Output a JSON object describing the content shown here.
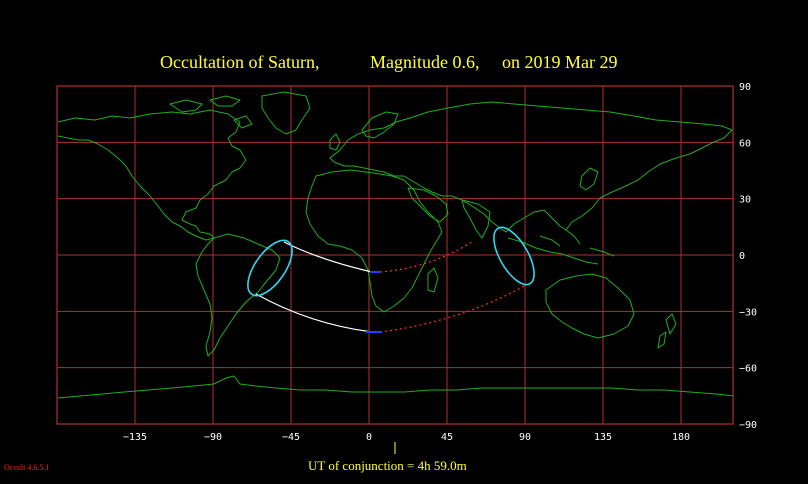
{
  "title": {
    "object": "Occultation of Saturn,",
    "magnitude": "Magnitude 0.6,",
    "date": "on 2019 Mar 29"
  },
  "axes": {
    "longitude_ticks": [
      "−135",
      "−90",
      "−45",
      "0",
      "45",
      "90",
      "135",
      "180"
    ],
    "latitude_ticks": [
      "90",
      "60",
      "30",
      "0",
      "−30",
      "−60",
      "−90"
    ]
  },
  "conjunction_label": "UT of conjunction = 4h 59.0m",
  "version_label": "Occult 4.6.5.1",
  "colors": {
    "background": "#000000",
    "grid": "#b03030",
    "coastline": "#1fae1f",
    "title": "#ffff33",
    "limit_line": "#ffffff",
    "limit_dotted": "#ff3030",
    "event_ellipse": "#33d6ee"
  }
}
